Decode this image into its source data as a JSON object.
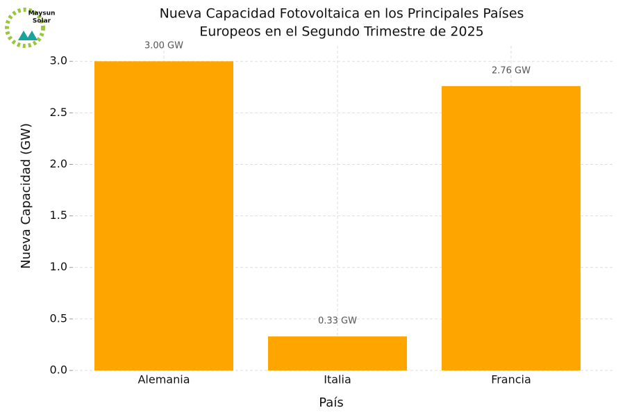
{
  "logo": {
    "line1": "Maysun",
    "line2": "Solar"
  },
  "chart_data": {
    "type": "bar",
    "title": [
      "Nueva Capacidad Fotovoltaica en los Principales Países",
      "Europeos en el Segundo Trimestre de 2025"
    ],
    "x_label": "País",
    "y_label": "Nueva Capacidad (GW)",
    "categories": [
      "Alemania",
      "Italia",
      "Francia"
    ],
    "values": [
      3.0,
      0.33,
      2.76
    ],
    "value_labels": [
      "3.00 GW",
      "0.33 GW",
      "2.76 GW"
    ],
    "color": "#ffa500",
    "ylim": [
      0,
      3.15
    ],
    "yticks": [
      {
        "value": 0,
        "label": "0.0"
      },
      {
        "value": 0.5,
        "label": "0.5"
      },
      {
        "value": 1,
        "label": "1.0"
      },
      {
        "value": 1.5,
        "label": "1.5"
      },
      {
        "value": 2,
        "label": "2.0"
      },
      {
        "value": 2.5,
        "label": "2.5"
      },
      {
        "value": 3,
        "label": "3.0"
      }
    ],
    "grid": true
  }
}
